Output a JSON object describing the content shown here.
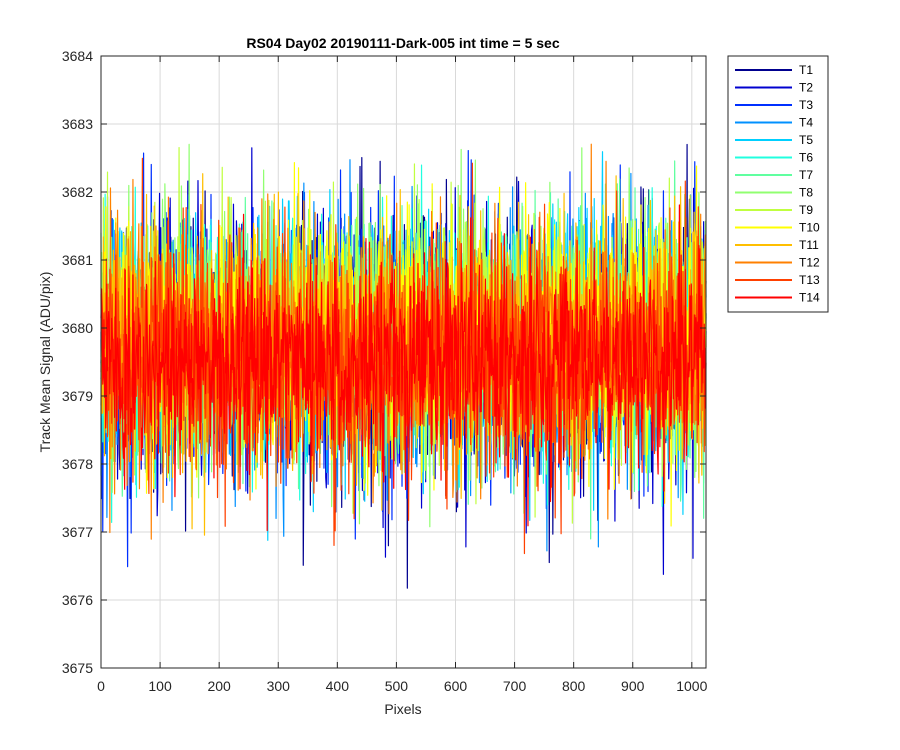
{
  "chart_data": {
    "type": "line",
    "title": "RS04 Day02 20190111-Dark-005 int time = 5 sec",
    "xlabel": "Pixels",
    "ylabel": "Track Mean Signal (ADU/pix)",
    "xlim": [
      0,
      1024
    ],
    "ylim": [
      3675,
      3684
    ],
    "xticks": [
      "0",
      "100",
      "200",
      "300",
      "400",
      "500",
      "600",
      "700",
      "800",
      "900",
      "1000"
    ],
    "yticks": [
      "3675",
      "3676",
      "3677",
      "3678",
      "3679",
      "3680",
      "3681",
      "3682",
      "3683",
      "3684"
    ],
    "grid": true,
    "legend_position": "outside-top-right",
    "points_per_series": 1024,
    "series": [
      {
        "name": "T1",
        "color": "#00008f",
        "mean": 3679.7,
        "std": 0.95
      },
      {
        "name": "T2",
        "color": "#0000cf",
        "mean": 3679.7,
        "std": 0.95
      },
      {
        "name": "T3",
        "color": "#0030ff",
        "mean": 3679.7,
        "std": 0.93
      },
      {
        "name": "T4",
        "color": "#0090ff",
        "mean": 3679.8,
        "std": 0.92
      },
      {
        "name": "T5",
        "color": "#00d0ff",
        "mean": 3679.8,
        "std": 0.92
      },
      {
        "name": "T6",
        "color": "#20ffdf",
        "mean": 3679.8,
        "std": 0.9
      },
      {
        "name": "T7",
        "color": "#60ffa0",
        "mean": 3679.8,
        "std": 0.9
      },
      {
        "name": "T8",
        "color": "#90ff70",
        "mean": 3679.9,
        "std": 0.9
      },
      {
        "name": "T9",
        "color": "#c0ff40",
        "mean": 3679.9,
        "std": 0.9
      },
      {
        "name": "T10",
        "color": "#ffff00",
        "mean": 3679.9,
        "std": 0.88
      },
      {
        "name": "T11",
        "color": "#ffbf00",
        "mean": 3679.8,
        "std": 0.88
      },
      {
        "name": "T12",
        "color": "#ff8000",
        "mean": 3679.7,
        "std": 0.88
      },
      {
        "name": "T13",
        "color": "#ff4000",
        "mean": 3679.6,
        "std": 0.85
      },
      {
        "name": "T14",
        "color": "#ff0000",
        "mean": 3679.5,
        "std": 0.75
      }
    ]
  }
}
